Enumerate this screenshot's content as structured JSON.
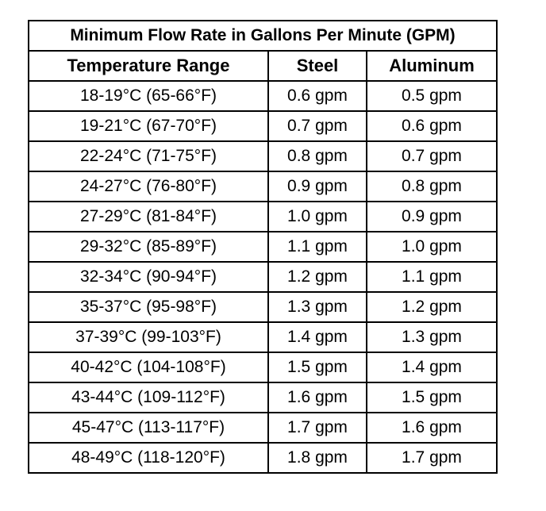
{
  "table": {
    "title": "Minimum Flow Rate in Gallons Per Minute (GPM)",
    "headers": [
      "Temperature Range",
      "Steel",
      "Aluminum"
    ],
    "rows": [
      [
        "18-19°C (65-66°F)",
        "0.6 gpm",
        "0.5 gpm"
      ],
      [
        "19-21°C (67-70°F)",
        "0.7 gpm",
        "0.6 gpm"
      ],
      [
        "22-24°C (71-75°F)",
        "0.8 gpm",
        "0.7 gpm"
      ],
      [
        "24-27°C (76-80°F)",
        "0.9 gpm",
        "0.8 gpm"
      ],
      [
        "27-29°C (81-84°F)",
        "1.0 gpm",
        "0.9 gpm"
      ],
      [
        "29-32°C (85-89°F)",
        "1.1 gpm",
        "1.0 gpm"
      ],
      [
        "32-34°C (90-94°F)",
        "1.2 gpm",
        "1.1 gpm"
      ],
      [
        "35-37°C (95-98°F)",
        "1.3 gpm",
        "1.2 gpm"
      ],
      [
        "37-39°C (99-103°F)",
        "1.4 gpm",
        "1.3 gpm"
      ],
      [
        "40-42°C (104-108°F)",
        "1.5 gpm",
        "1.4 gpm"
      ],
      [
        "43-44°C (109-112°F)",
        "1.6 gpm",
        "1.5 gpm"
      ],
      [
        "45-47°C (113-117°F)",
        "1.7 gpm",
        "1.6 gpm"
      ],
      [
        "48-49°C (118-120°F)",
        "1.8 gpm",
        "1.7 gpm"
      ]
    ]
  }
}
